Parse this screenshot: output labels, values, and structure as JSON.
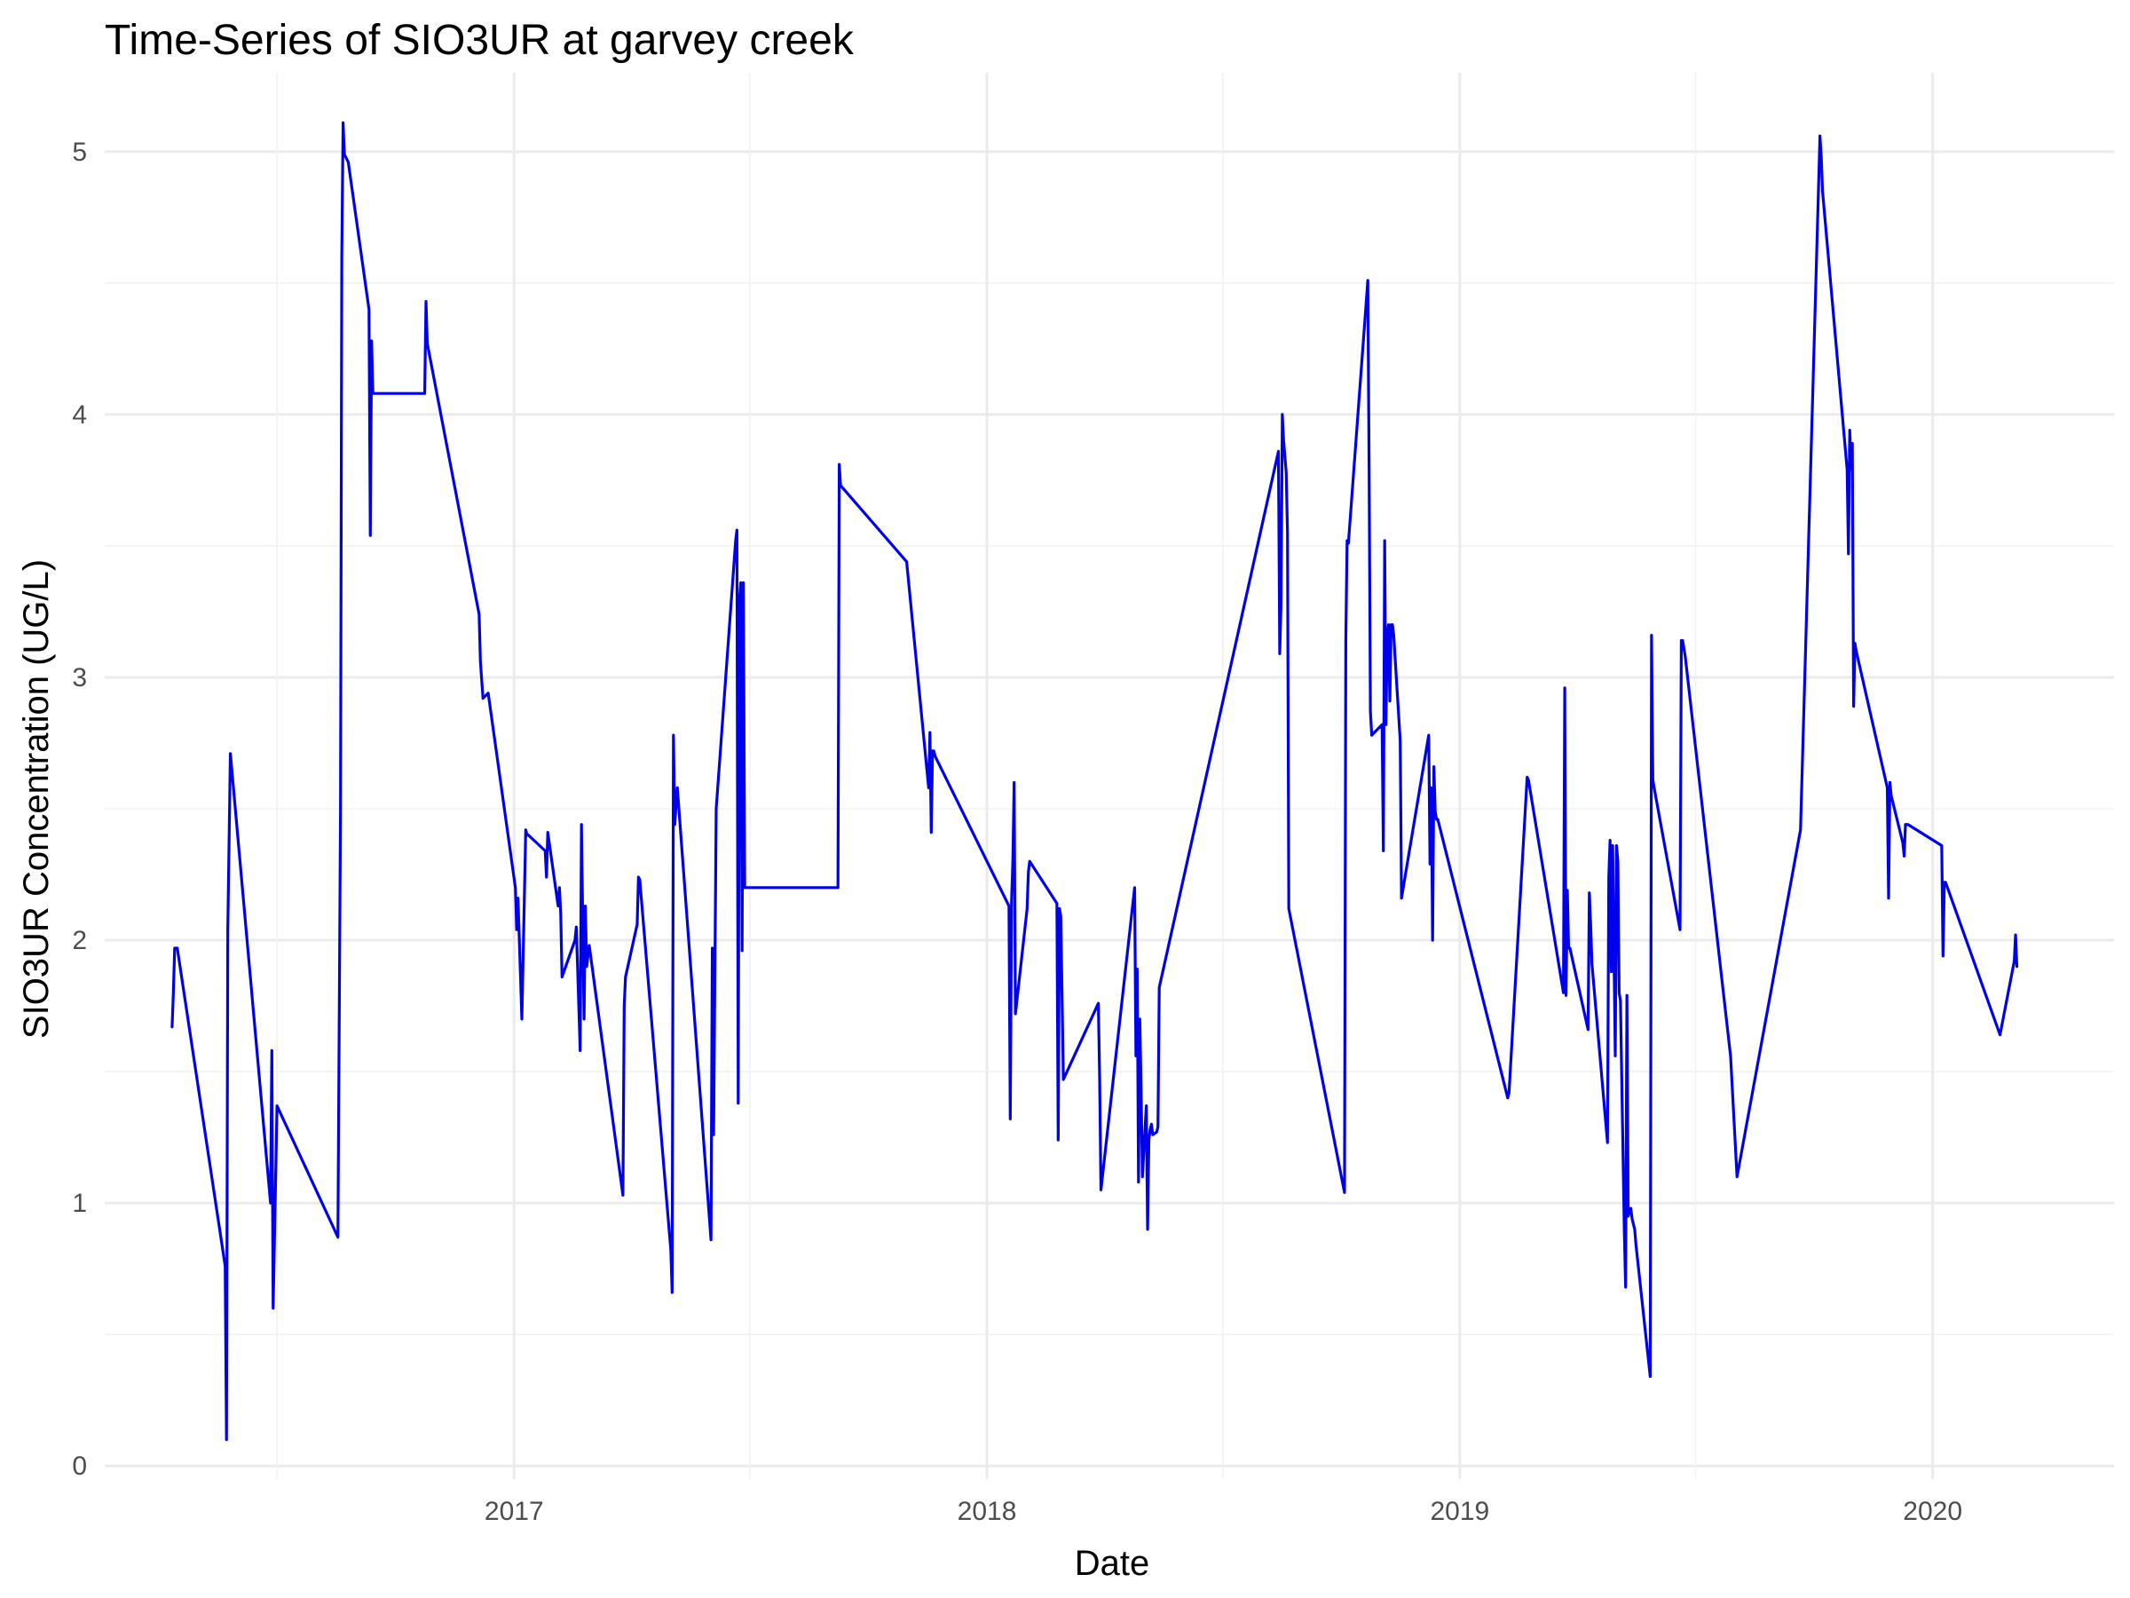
{
  "chart_data": {
    "type": "line",
    "title": "Time-Series of SIO3UR at garvey creek",
    "xlabel": "Date",
    "ylabel": "SIO3UR Concentration (UG/L)",
    "x_ticks": [
      "2017",
      "2018",
      "2019",
      "2020"
    ],
    "y_ticks": [
      "0",
      "1",
      "2",
      "3",
      "4",
      "5"
    ],
    "xlim": [
      "2016-02-20",
      "2020-05-20"
    ],
    "ylim": [
      -0.05,
      5.3
    ],
    "grid": true,
    "legend": "none",
    "color": "#0000ee",
    "series": [
      {
        "x": [
          "2016-04-12",
          "2016-04-13",
          "2016-04-14",
          "2016-04-16",
          "2016-05-23",
          "2016-05-24",
          "2016-05-25",
          "2016-05-27",
          "2016-06-27",
          "2016-06-28",
          "2016-06-29",
          "2016-07-02",
          "2016-08-18",
          "2016-08-20",
          "2016-08-21",
          "2016-08-22",
          "2016-08-23",
          "2016-08-26",
          "2016-09-11",
          "2016-09-12",
          "2016-09-13",
          "2016-09-14",
          "2016-09-15",
          "2016-10-24",
          "2016-10-25",
          "2016-10-26",
          "2016-12-05",
          "2016-12-06",
          "2016-12-08",
          "2016-12-12",
          "2017-01-02",
          "2017-01-03",
          "2017-01-04",
          "2017-01-07",
          "2017-01-10",
          "2017-01-11",
          "2017-01-12",
          "2017-01-25",
          "2017-01-26",
          "2017-01-27",
          "2017-02-04",
          "2017-02-05",
          "2017-02-06",
          "2017-02-07",
          "2017-02-17",
          "2017-02-18",
          "2017-02-19",
          "2017-02-21",
          "2017-02-22",
          "2017-02-24",
          "2017-02-25",
          "2017-02-26",
          "2017-02-28",
          "2017-03-26",
          "2017-03-27",
          "2017-03-28",
          "2017-04-06",
          "2017-04-07",
          "2017-04-08",
          "2017-05-02",
          "2017-05-03",
          "2017-05-04",
          "2017-05-05",
          "2017-05-07",
          "2017-06-02",
          "2017-06-03",
          "2017-06-04",
          "2017-06-06",
          "2017-06-21",
          "2017-06-22",
          "2017-06-23",
          "2017-06-24",
          "2017-06-25",
          "2017-06-26",
          "2017-06-27",
          "2017-06-28",
          "2017-07-07",
          "2017-09-08",
          "2017-09-09",
          "2017-09-10",
          "2017-10-31",
          "2017-11-17",
          "2017-11-18",
          "2017-11-19",
          "2017-11-20",
          "2017-11-21",
          "2017-11-22",
          "2018-01-18",
          "2018-01-19",
          "2018-01-20",
          "2018-01-21",
          "2018-01-22",
          "2018-01-23",
          "2018-02-01",
          "2018-02-02",
          "2018-02-03",
          "2018-02-24",
          "2018-02-25",
          "2018-02-26",
          "2018-02-27",
          "2018-03-01",
          "2018-03-28",
          "2018-03-29",
          "2018-03-30",
          "2018-04-25",
          "2018-04-26",
          "2018-04-27",
          "2018-04-28",
          "2018-04-29",
          "2018-04-30",
          "2018-05-01",
          "2018-05-04",
          "2018-05-05",
          "2018-05-06",
          "2018-05-07",
          "2018-05-08",
          "2018-05-09",
          "2018-05-12",
          "2018-05-13",
          "2018-05-14",
          "2018-08-14",
          "2018-08-15",
          "2018-08-16",
          "2018-08-17",
          "2018-08-18",
          "2018-08-20",
          "2018-08-21",
          "2018-08-22",
          "2018-10-04",
          "2018-10-05",
          "2018-10-06",
          "2018-10-07",
          "2018-10-22",
          "2018-10-23",
          "2018-10-24",
          "2018-10-25",
          "2018-11-02",
          "2018-11-03",
          "2018-11-04",
          "2018-11-05",
          "2018-11-06",
          "2018-11-07",
          "2018-11-08",
          "2018-11-09",
          "2018-11-10",
          "2018-11-11",
          "2018-11-16",
          "2018-11-17",
          "2018-12-08",
          "2018-12-09",
          "2018-12-10",
          "2018-12-11",
          "2018-12-12",
          "2018-12-13",
          "2018-12-14",
          "2018-12-15",
          "2019-02-07",
          "2019-02-08",
          "2019-02-22",
          "2019-02-23",
          "2019-03-22",
          "2019-03-23",
          "2019-03-24",
          "2019-03-25",
          "2019-03-26",
          "2019-03-27",
          "2019-04-10",
          "2019-04-11",
          "2019-04-12",
          "2019-04-13",
          "2019-04-25",
          "2019-04-26",
          "2019-04-27",
          "2019-04-28",
          "2019-04-29",
          "2019-05-01",
          "2019-05-02",
          "2019-05-03",
          "2019-05-04",
          "2019-05-05",
          "2019-05-08",
          "2019-05-09",
          "2019-05-10",
          "2019-05-11",
          "2019-05-12",
          "2019-05-13",
          "2019-05-14",
          "2019-05-15",
          "2019-05-16",
          "2019-05-17",
          "2019-05-28",
          "2019-05-29",
          "2019-05-30",
          "2019-05-31",
          "2019-06-20",
          "2019-06-21",
          "2019-06-22",
          "2019-06-24",
          "2019-07-29",
          "2019-08-03",
          "2019-09-21",
          "2019-10-05",
          "2019-10-06",
          "2019-10-07",
          "2019-10-08",
          "2019-10-27",
          "2019-10-28",
          "2019-10-29",
          "2019-10-30",
          "2019-10-31",
          "2019-11-01",
          "2019-11-02",
          "2019-11-03",
          "2019-11-27",
          "2019-11-28",
          "2019-11-29",
          "2019-11-30",
          "2019-12-09",
          "2019-12-10",
          "2019-12-11",
          "2019-12-13",
          "2020-01-08",
          "2020-01-09",
          "2020-01-10",
          "2020-01-11",
          "2020-02-22",
          "2020-03-04",
          "2020-03-05",
          "2020-03-06"
        ],
        "y": [
          1.67,
          1.8,
          1.97,
          1.97,
          0.76,
          0.1,
          2.04,
          2.71,
          1.0,
          1.58,
          0.6,
          1.37,
          0.87,
          2.49,
          4.6,
          5.11,
          4.99,
          4.96,
          4.4,
          3.54,
          4.28,
          4.08,
          4.08,
          4.08,
          4.43,
          4.27,
          3.24,
          3.06,
          2.92,
          2.94,
          2.2,
          2.04,
          2.16,
          1.7,
          2.42,
          2.4,
          2.4,
          2.34,
          2.24,
          2.41,
          2.13,
          2.2,
          2.1,
          1.86,
          2.0,
          2.05,
          1.9,
          1.58,
          2.44,
          1.7,
          2.13,
          1.9,
          1.98,
          1.03,
          1.75,
          1.86,
          2.06,
          2.24,
          2.23,
          0.82,
          0.66,
          2.78,
          2.44,
          2.58,
          0.86,
          1.97,
          1.26,
          2.5,
          3.52,
          3.56,
          1.38,
          3.29,
          3.36,
          1.96,
          3.36,
          2.2,
          2.2,
          2.2,
          3.81,
          3.73,
          3.44,
          2.58,
          2.79,
          2.41,
          2.72,
          2.72,
          2.7,
          2.13,
          1.32,
          2.15,
          2.3,
          2.6,
          1.72,
          2.12,
          2.26,
          2.3,
          2.14,
          1.24,
          2.12,
          2.09,
          1.47,
          1.76,
          1.47,
          1.05,
          2.2,
          1.56,
          1.89,
          1.08,
          1.7,
          1.43,
          1.1,
          1.37,
          0.9,
          1.24,
          1.28,
          1.3,
          1.26,
          1.27,
          1.29,
          1.82,
          3.86,
          3.09,
          3.28,
          4.0,
          3.9,
          3.78,
          3.55,
          2.12,
          1.04,
          3.14,
          3.52,
          3.51,
          4.51,
          3.79,
          2.87,
          2.78,
          2.82,
          2.34,
          3.52,
          2.82,
          3.16,
          3.2,
          2.91,
          3.2,
          3.2,
          3.16,
          2.76,
          2.16,
          2.78,
          2.29,
          2.58,
          2.0,
          2.66,
          2.49,
          2.46,
          2.46,
          1.4,
          1.42,
          2.62,
          2.61,
          1.8,
          2.96,
          1.79,
          2.19,
          1.97,
          1.97,
          1.66,
          2.18,
          2.06,
          1.91,
          1.23,
          2.24,
          2.38,
          1.88,
          2.36,
          1.56,
          2.36,
          2.3,
          1.8,
          1.77,
          0.89,
          0.68,
          1.79,
          0.95,
          0.97,
          0.98,
          0.94,
          0.92,
          0.9,
          0.84,
          0.34,
          3.16,
          2.61,
          2.58,
          2.04,
          3.14,
          3.14,
          3.08,
          1.56,
          1.1,
          2.42,
          4.88,
          5.06,
          4.98,
          4.85,
          3.79,
          3.47,
          3.94,
          3.79,
          3.89,
          2.89,
          3.13,
          3.1,
          2.58,
          2.16,
          2.6,
          2.55,
          2.37,
          2.32,
          2.44,
          2.44,
          2.36,
          1.94,
          2.22,
          2.22,
          1.64,
          1.92,
          2.02,
          1.9
        ]
      }
    ]
  }
}
